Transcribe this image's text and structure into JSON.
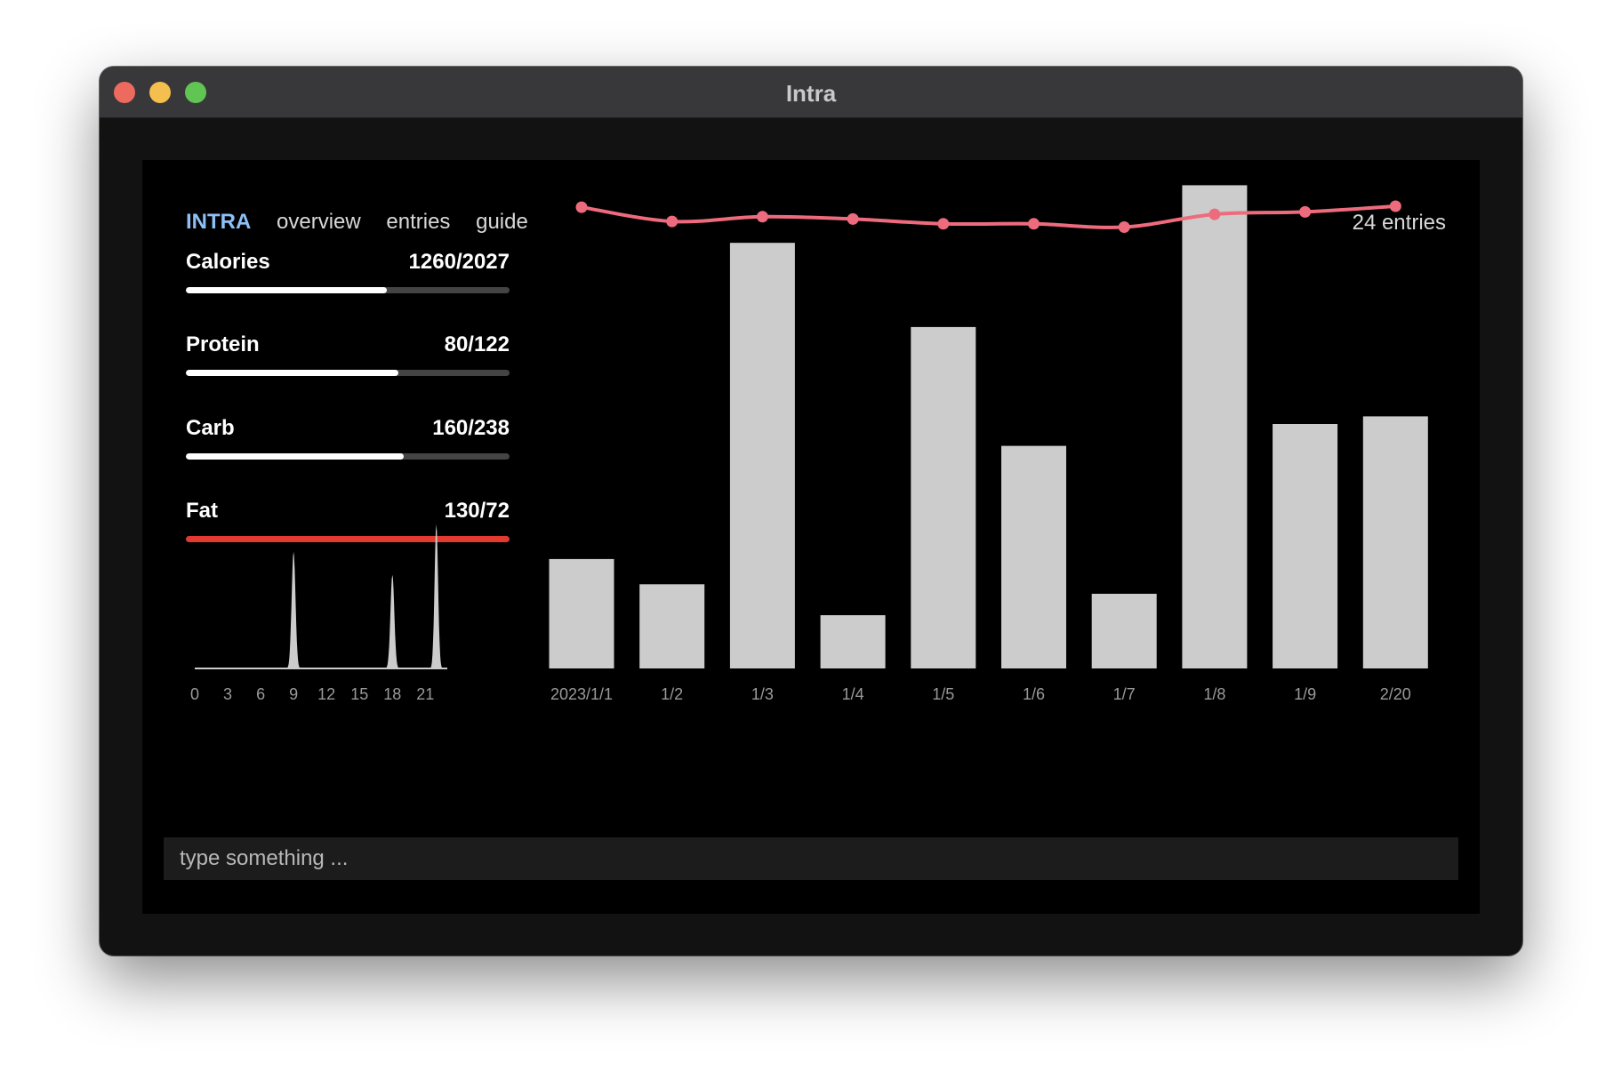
{
  "window": {
    "title": "Intra"
  },
  "nav": {
    "brand": "INTRA",
    "items": [
      "overview",
      "entries",
      "guide"
    ]
  },
  "entries_count": "24 entries",
  "macros": [
    {
      "label": "Calories",
      "value": "1260/2027",
      "current": 1260,
      "target": 2027,
      "over": false
    },
    {
      "label": "Protein",
      "value": "80/122",
      "current": 80,
      "target": 122,
      "over": false
    },
    {
      "label": "Carb",
      "value": "160/238",
      "current": 160,
      "target": 238,
      "over": false
    },
    {
      "label": "Fat",
      "value": "130/72",
      "current": 130,
      "target": 72,
      "over": true
    }
  ],
  "input": {
    "placeholder": "type something ...",
    "value": ""
  },
  "colors": {
    "brand": "#8ec0f5",
    "line": "#ee6b7e",
    "bar": "#cccccc",
    "over": "#e23a2e"
  },
  "chart_data": [
    {
      "type": "area",
      "x_ticks": [
        "0",
        "3",
        "6",
        "9",
        "12",
        "15",
        "18",
        "21"
      ],
      "xlim": [
        0,
        23
      ],
      "ylim": [
        0,
        1
      ],
      "peaks": [
        {
          "x": 9,
          "height": 0.81,
          "width": 0.55
        },
        {
          "x": 18,
          "height": 0.65,
          "width": 0.55
        },
        {
          "x": 22,
          "height": 1.0,
          "width": 0.5
        }
      ]
    },
    {
      "type": "bar",
      "categories": [
        "2023/1/1",
        "1/2",
        "1/3",
        "1/4",
        "1/5",
        "1/6",
        "1/7",
        "1/8",
        "1/9",
        "2/20"
      ],
      "values": [
        23,
        17.7,
        89.5,
        11.2,
        71.8,
        46.8,
        15.7,
        101.6,
        51.4,
        53
      ],
      "line_values": [
        97,
        94,
        95,
        94.5,
        93.5,
        93.5,
        92.8,
        95.5,
        96,
        97.2
      ],
      "ylim": [
        0,
        100
      ]
    }
  ]
}
